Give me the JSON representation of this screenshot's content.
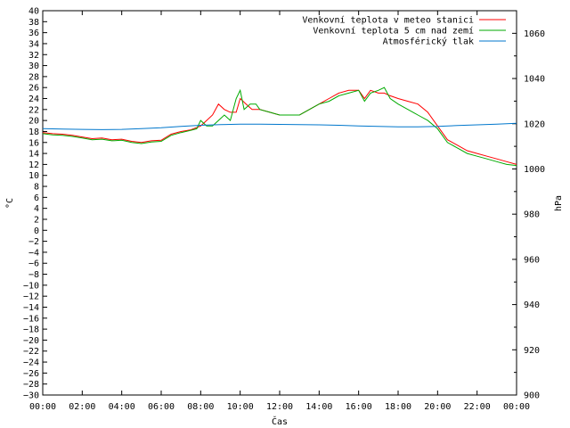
{
  "chart_data": {
    "type": "line",
    "xlabel": "Čas",
    "ylabel": "°C",
    "y2label": "hPa",
    "x_ticks": [
      "00:00",
      "02:00",
      "04:00",
      "06:00",
      "08:00",
      "10:00",
      "12:00",
      "14:00",
      "16:00",
      "18:00",
      "20:00",
      "22:00",
      "00:00"
    ],
    "xlim_hours": [
      0,
      24
    ],
    "ylim": [
      -30,
      40
    ],
    "y_tick_step": 2,
    "y2lim": [
      900,
      1070
    ],
    "y2_ticks": [
      900,
      920,
      940,
      960,
      980,
      1000,
      1020,
      1040,
      1060
    ],
    "grid": false,
    "legend_position": "top-right",
    "series": [
      {
        "name": "Venkovní teplota v meteo stanici",
        "axis": "left",
        "color": "#ff0000",
        "x": [
          0,
          0.5,
          1,
          1.5,
          2,
          2.5,
          3,
          3.5,
          4,
          4.5,
          5,
          5.5,
          6,
          6.5,
          7,
          7.5,
          8,
          8.3,
          8.6,
          8.9,
          9.2,
          9.5,
          9.8,
          10,
          10.3,
          10.6,
          11,
          11.5,
          12,
          12.5,
          13,
          13.5,
          14,
          14.5,
          15,
          15.5,
          16,
          16.3,
          16.6,
          17,
          17.3,
          17.6,
          18,
          18.5,
          19,
          19.5,
          20,
          20.5,
          21,
          21.5,
          22,
          22.5,
          23,
          23.5,
          24
        ],
        "y": [
          17.8,
          17.6,
          17.5,
          17.3,
          17.0,
          16.7,
          16.8,
          16.5,
          16.6,
          16.2,
          16.0,
          16.3,
          16.4,
          17.5,
          18.0,
          18.3,
          19.0,
          20.0,
          21.0,
          23.0,
          22.0,
          21.5,
          21.5,
          24.0,
          23.0,
          22.0,
          22.0,
          21.5,
          21.0,
          21.0,
          21.0,
          22.0,
          23.0,
          24.0,
          25.0,
          25.5,
          25.5,
          24.0,
          25.5,
          25.0,
          25.0,
          24.5,
          24.0,
          23.5,
          23.0,
          21.5,
          19.0,
          16.5,
          15.5,
          14.5,
          14.0,
          13.5,
          13.0,
          12.5,
          12.0
        ]
      },
      {
        "name": "Venkovní teplota 5 cm nad zemí",
        "axis": "left",
        "color": "#00aa00",
        "x": [
          0,
          0.5,
          1,
          1.5,
          2,
          2.5,
          3,
          3.5,
          4,
          4.5,
          5,
          5.5,
          6,
          6.5,
          7,
          7.5,
          7.8,
          8,
          8.3,
          8.6,
          8.9,
          9.2,
          9.5,
          9.8,
          10,
          10.2,
          10.5,
          10.8,
          11,
          11.5,
          12,
          12.5,
          13,
          13.5,
          14,
          14.5,
          15,
          15.5,
          16,
          16.3,
          16.6,
          17,
          17.3,
          17.6,
          18,
          18.5,
          19,
          19.5,
          20,
          20.5,
          21,
          21.5,
          22,
          22.5,
          23,
          23.5,
          24
        ],
        "y": [
          17.6,
          17.4,
          17.3,
          17.1,
          16.8,
          16.5,
          16.6,
          16.3,
          16.4,
          16.0,
          15.8,
          16.1,
          16.2,
          17.3,
          17.8,
          18.2,
          18.5,
          20.0,
          19.0,
          19.0,
          20.0,
          21.0,
          20.0,
          24.0,
          25.5,
          22.0,
          23.0,
          23.0,
          22.0,
          21.5,
          21.0,
          21.0,
          21.0,
          22.0,
          23.0,
          23.5,
          24.5,
          25.0,
          25.5,
          23.5,
          25.0,
          25.5,
          26.0,
          24.0,
          23.0,
          22.0,
          21.0,
          20.0,
          18.5,
          16.0,
          15.0,
          14.0,
          13.5,
          13.0,
          12.5,
          12.0,
          11.8
        ]
      },
      {
        "name": "Atmosférický tlak",
        "axis": "right",
        "color": "#0077cc",
        "x": [
          0,
          1,
          2,
          3,
          4,
          5,
          6,
          7,
          8,
          9,
          10,
          11,
          12,
          13,
          14,
          15,
          16,
          17,
          18,
          19,
          20,
          21,
          22,
          23,
          24
        ],
        "y": [
          1017.8,
          1017.6,
          1017.5,
          1017.4,
          1017.5,
          1017.8,
          1018.2,
          1018.8,
          1019.3,
          1019.6,
          1019.8,
          1019.8,
          1019.7,
          1019.6,
          1019.5,
          1019.3,
          1019.0,
          1018.8,
          1018.6,
          1018.6,
          1018.8,
          1019.2,
          1019.5,
          1019.8,
          1020.2
        ]
      }
    ]
  }
}
